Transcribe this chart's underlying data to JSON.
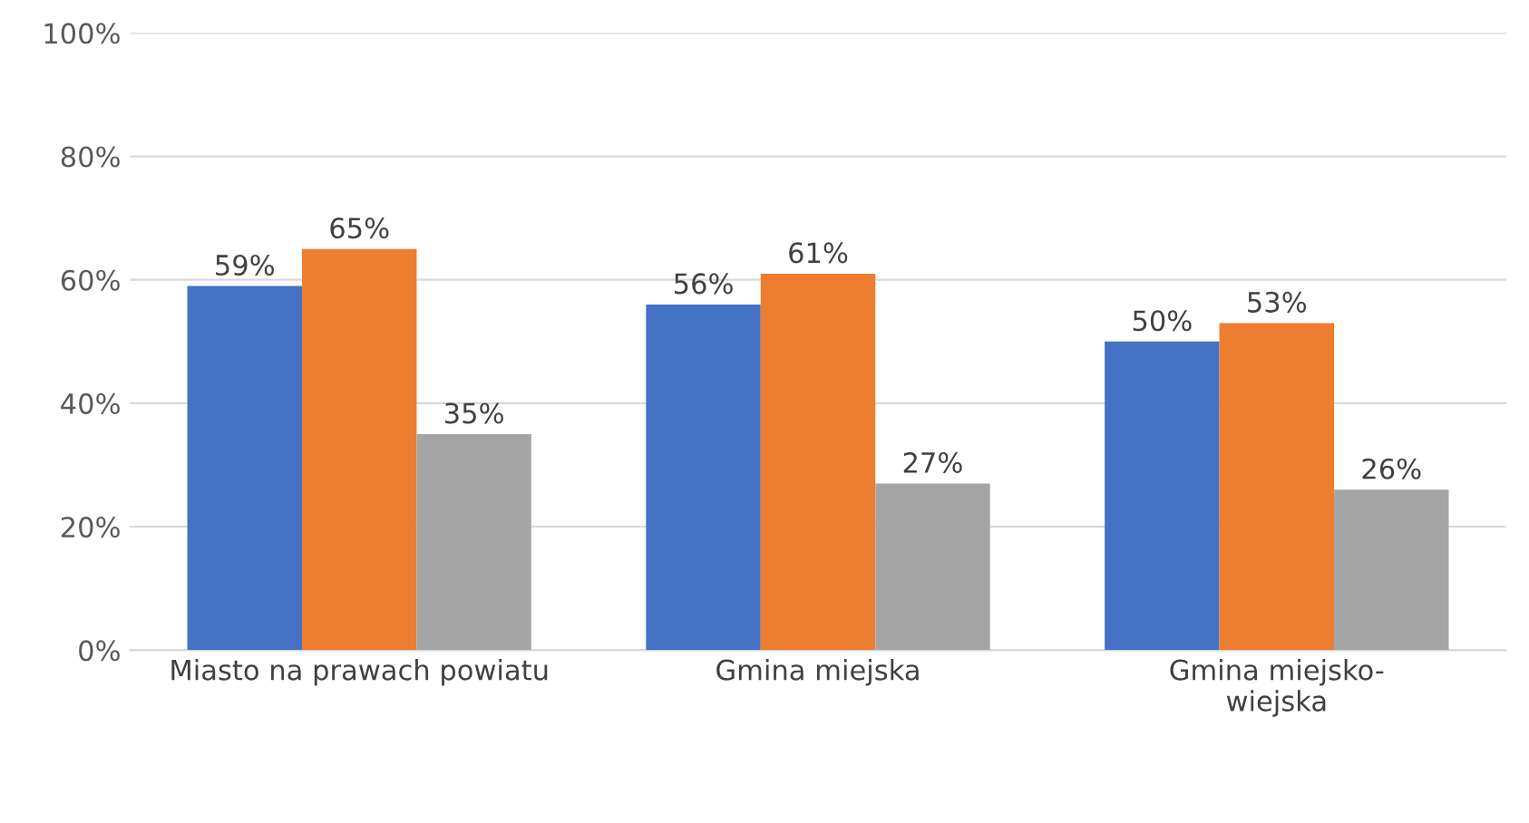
{
  "chart_data": {
    "type": "bar",
    "categories": [
      "Miasto na prawach powiatu",
      "Gmina miejska",
      "Gmina miejsko-\nwiejska"
    ],
    "series": [
      {
        "color": "#4472c4",
        "values": [
          59,
          56,
          50
        ],
        "value_labels": [
          "59%",
          "56%",
          "50%"
        ]
      },
      {
        "color": "#ed7d31",
        "values": [
          65,
          61,
          53
        ],
        "value_labels": [
          "65%",
          "61%",
          "53%"
        ]
      },
      {
        "color": "#a5a5a5",
        "values": [
          35,
          27,
          26
        ],
        "value_labels": [
          "35%",
          "27%",
          "26%"
        ]
      }
    ],
    "ylim": [
      0,
      100
    ],
    "yticks": [
      {
        "value": 0,
        "label": "0%"
      },
      {
        "value": 20,
        "label": "20%"
      },
      {
        "value": 40,
        "label": "40%"
      },
      {
        "value": 60,
        "label": "60%"
      },
      {
        "value": 80,
        "label": "80%"
      },
      {
        "value": 100,
        "label": "100%"
      }
    ],
    "grid": "y"
  }
}
